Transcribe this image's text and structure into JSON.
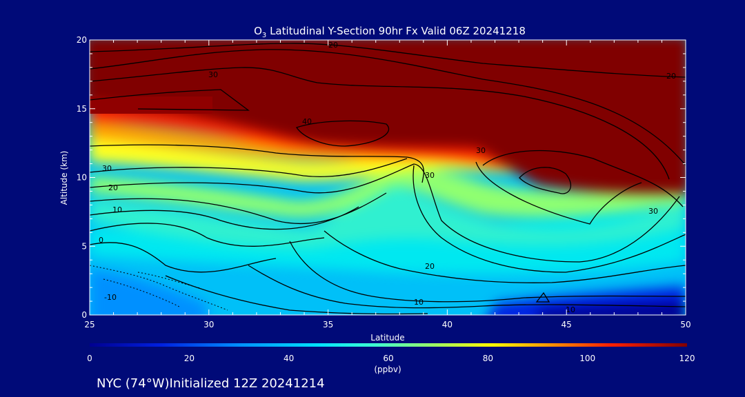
{
  "title": {
    "species_base": "O",
    "species_sub": "3",
    "rest": " Latitudinal Y-Section 90hr  Fx Valid 06Z 20241218"
  },
  "footer": "NYC (74°W)Initialized 12Z 20241214",
  "chart_data": {
    "type": "contour-section",
    "xlabel": "Latitude",
    "ylabel": "Altitude (km)",
    "xlim": [
      25,
      50
    ],
    "ylim": [
      0,
      20
    ],
    "x_ticks": [
      "25",
      "30",
      "35",
      "40",
      "45",
      "50"
    ],
    "y_ticks": [
      "0",
      "5",
      "10",
      "15",
      "20"
    ],
    "colorbar": {
      "label": "(ppbv)",
      "range": [
        0,
        120
      ],
      "ticks": [
        "0",
        "20",
        "40",
        "60",
        "80",
        "100",
        "120"
      ],
      "colors": [
        "#000090",
        "#0020e0",
        "#0090ff",
        "#00e0ff",
        "#40ffd0",
        "#a0ff60",
        "#ffff00",
        "#ffa000",
        "#ff2000",
        "#800000"
      ]
    },
    "contour_labels": [
      "20",
      "30",
      "20",
      "40",
      "30",
      "30",
      "20",
      "10",
      "30",
      "20",
      "10",
      "0",
      "-10",
      "10",
      "30"
    ]
  }
}
